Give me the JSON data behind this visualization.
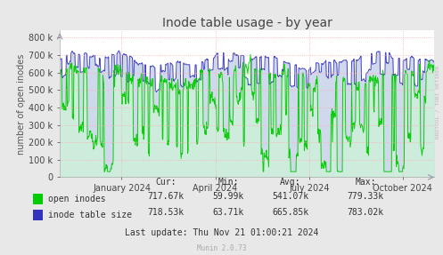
{
  "title": "Inode table usage - by year",
  "ylabel": "number of open inodes",
  "xlabel_ticks": [
    "January 2024",
    "April 2024",
    "July 2024",
    "October 2024"
  ],
  "yticks": [
    0,
    100000,
    200000,
    300000,
    400000,
    500000,
    600000,
    700000,
    800000
  ],
  "ylim": [
    0,
    840000
  ],
  "background_color": "#e8e8e8",
  "plot_bg_color": "#ffffff",
  "grid_color": "#ffaaaa",
  "line_color_green": "#00cc00",
  "line_color_blue": "#3333bb",
  "fill_color_green": "#ccffcc",
  "fill_color_blue": "#aabbdd",
  "legend": [
    {
      "label": "open inodes",
      "color": "#00cc00"
    },
    {
      "label": "inode table size",
      "color": "#3333bb"
    }
  ],
  "stats": {
    "cur": [
      "717.67k",
      "718.53k"
    ],
    "min": [
      "59.99k",
      "63.71k"
    ],
    "avg": [
      "541.07k",
      "665.85k"
    ],
    "max": [
      "779.33k",
      "783.02k"
    ]
  },
  "footer": "Last update: Thu Nov 21 01:00:21 2024",
  "munin_version": "Munin 2.0.73",
  "watermark": "RRDTOOL / TOBI OETIKER",
  "title_fontsize": 10,
  "axis_fontsize": 7,
  "legend_fontsize": 7,
  "stats_fontsize": 7
}
